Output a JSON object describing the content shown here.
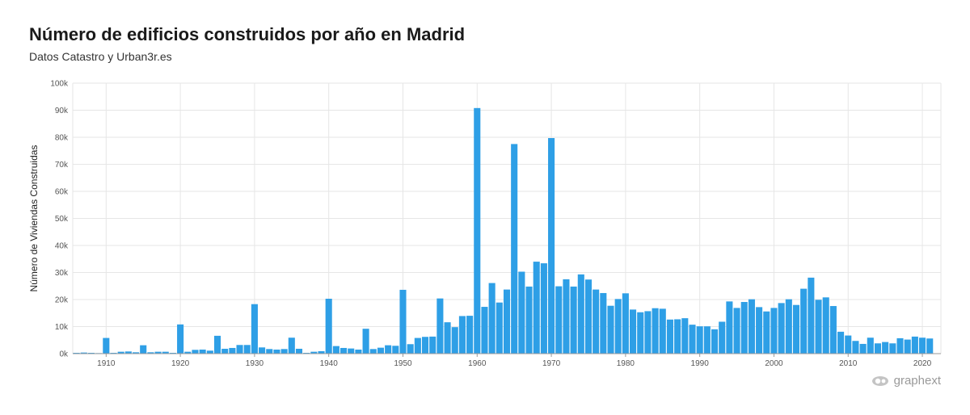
{
  "header": {
    "title": "Número de edificios construidos por año en Madrid",
    "subtitle": "Datos Catastro y Urban3r.es"
  },
  "brand": {
    "name": "graphext",
    "icon": "graphext-logo-icon"
  },
  "colors": {
    "bar": "#2e9fe6",
    "grid": "#e6e6e6",
    "axis": "#999999"
  },
  "chart_data": {
    "type": "bar",
    "ylabel": "Número de Viviendas Construidas",
    "xlabel": "",
    "ylim": [
      0,
      100000
    ],
    "xlim": [
      1906,
      2022
    ],
    "y_ticks": [
      {
        "value": 0,
        "label": "0k"
      },
      {
        "value": 10000,
        "label": "10k"
      },
      {
        "value": 20000,
        "label": "20k"
      },
      {
        "value": 30000,
        "label": "30k"
      },
      {
        "value": 40000,
        "label": "40k"
      },
      {
        "value": 50000,
        "label": "50k"
      },
      {
        "value": 60000,
        "label": "60k"
      },
      {
        "value": 70000,
        "label": "70k"
      },
      {
        "value": 80000,
        "label": "80k"
      },
      {
        "value": 90000,
        "label": "90k"
      },
      {
        "value": 100000,
        "label": "100k"
      }
    ],
    "x_ticks": [
      {
        "value": 1910,
        "label": "1910"
      },
      {
        "value": 1920,
        "label": "1920"
      },
      {
        "value": 1930,
        "label": "1930"
      },
      {
        "value": 1940,
        "label": "1940"
      },
      {
        "value": 1950,
        "label": "1950"
      },
      {
        "value": 1960,
        "label": "1960"
      },
      {
        "value": 1970,
        "label": "1970"
      },
      {
        "value": 1980,
        "label": "1980"
      },
      {
        "value": 1990,
        "label": "1990"
      },
      {
        "value": 2000,
        "label": "2000"
      },
      {
        "value": 2010,
        "label": "2010"
      },
      {
        "value": 2020,
        "label": "2020"
      }
    ],
    "grid": true,
    "legend": "none",
    "categories": [
      1906,
      1907,
      1908,
      1909,
      1910,
      1911,
      1912,
      1913,
      1914,
      1915,
      1916,
      1917,
      1918,
      1919,
      1920,
      1921,
      1922,
      1923,
      1924,
      1925,
      1926,
      1927,
      1928,
      1929,
      1930,
      1931,
      1932,
      1933,
      1934,
      1935,
      1936,
      1937,
      1938,
      1939,
      1940,
      1941,
      1942,
      1943,
      1944,
      1945,
      1946,
      1947,
      1948,
      1949,
      1950,
      1951,
      1952,
      1953,
      1954,
      1955,
      1956,
      1957,
      1958,
      1959,
      1960,
      1961,
      1962,
      1963,
      1964,
      1965,
      1966,
      1967,
      1968,
      1969,
      1970,
      1971,
      1972,
      1973,
      1974,
      1975,
      1976,
      1977,
      1978,
      1979,
      1980,
      1981,
      1982,
      1983,
      1984,
      1985,
      1986,
      1987,
      1988,
      1989,
      1990,
      1991,
      1992,
      1993,
      1994,
      1995,
      1996,
      1997,
      1998,
      1999,
      2000,
      2001,
      2002,
      2003,
      2004,
      2005,
      2006,
      2007,
      2008,
      2009,
      2010,
      2011,
      2012,
      2013,
      2014,
      2015,
      2016,
      2017,
      2018,
      2019,
      2020,
      2021
    ],
    "values": [
      300,
      400,
      300,
      200,
      5800,
      300,
      700,
      800,
      500,
      3100,
      500,
      700,
      700,
      300,
      10800,
      700,
      1400,
      1500,
      1100,
      6600,
      1800,
      2100,
      3200,
      3200,
      18300,
      2300,
      1700,
      1500,
      1700,
      5900,
      1800,
      300,
      700,
      900,
      20300,
      2800,
      2100,
      1900,
      1500,
      9200,
      1700,
      2200,
      3100,
      2900,
      23600,
      3500,
      5800,
      6200,
      6300,
      20400,
      11600,
      9800,
      13900,
      14000,
      90800,
      17300,
      26100,
      18900,
      23700,
      77500,
      30300,
      24800,
      34000,
      33400,
      79700,
      24900,
      27500,
      24800,
      29300,
      27400,
      23700,
      22400,
      17700,
      20200,
      22300,
      16300,
      15300,
      15700,
      16800,
      16600,
      12600,
      12700,
      13100,
      10700,
      10100,
      10100,
      9000,
      11800,
      19300,
      16900,
      19100,
      20100,
      17200,
      15600,
      16900,
      18700,
      20100,
      18000,
      24000,
      28100,
      19900,
      20800,
      17600,
      8100,
      6700,
      4700,
      3600,
      5900,
      3800,
      4300,
      3800,
      5700,
      5200,
      6300,
      5900,
      5600
    ]
  }
}
